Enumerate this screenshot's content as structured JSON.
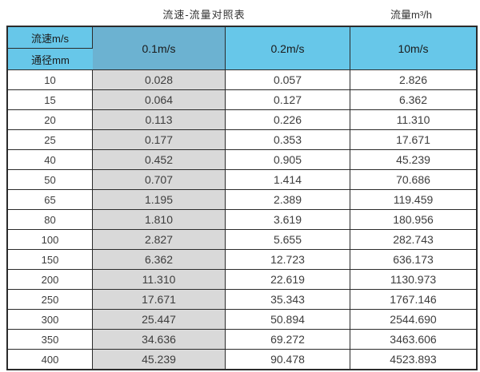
{
  "page": {
    "title": "流速-流量对照表",
    "unit_label": "流量m³/h"
  },
  "table": {
    "corner_top": "流速m/s",
    "corner_bottom": "通径mm",
    "velocity_headers": [
      "0.1m/s",
      "0.2m/s",
      "10m/s"
    ],
    "rows": [
      {
        "dn": "10",
        "v": [
          "0.028",
          "0.057",
          "2.826"
        ]
      },
      {
        "dn": "15",
        "v": [
          "0.064",
          "0.127",
          "6.362"
        ]
      },
      {
        "dn": "20",
        "v": [
          "0.113",
          "0.226",
          "11.310"
        ]
      },
      {
        "dn": "25",
        "v": [
          "0.177",
          "0.353",
          "17.671"
        ]
      },
      {
        "dn": "40",
        "v": [
          "0.452",
          "0.905",
          "45.239"
        ]
      },
      {
        "dn": "50",
        "v": [
          "0.707",
          "1.414",
          "70.686"
        ]
      },
      {
        "dn": "65",
        "v": [
          "1.195",
          "2.389",
          "119.459"
        ]
      },
      {
        "dn": "80",
        "v": [
          "1.810",
          "3.619",
          "180.956"
        ]
      },
      {
        "dn": "100",
        "v": [
          "2.827",
          "5.655",
          "282.743"
        ]
      },
      {
        "dn": "150",
        "v": [
          "6.362",
          "12.723",
          "636.173"
        ]
      },
      {
        "dn": "200",
        "v": [
          "11.310",
          "22.619",
          "1130.973"
        ]
      },
      {
        "dn": "250",
        "v": [
          "17.671",
          "35.343",
          "1767.146"
        ]
      },
      {
        "dn": "300",
        "v": [
          "25.447",
          "50.894",
          "2544.690"
        ]
      },
      {
        "dn": "350",
        "v": [
          "34.636",
          "69.272",
          "3463.606"
        ]
      },
      {
        "dn": "400",
        "v": [
          "45.239",
          "90.478",
          "4523.893"
        ]
      }
    ]
  },
  "colors": {
    "header_blue": "#67c7e9",
    "header_blue_dark": "#6cb2d1",
    "gray_column": "#d9d9d9",
    "border": "#2b2b2b"
  },
  "chart_data": {
    "type": "table",
    "title": "流速-流量对照表",
    "unit": "流量m³/h",
    "row_header_label": "通径mm",
    "column_header_label": "流速m/s",
    "columns": [
      "通径mm",
      "0.1m/s",
      "0.2m/s",
      "10m/s"
    ],
    "diameters_mm": [
      10,
      15,
      20,
      25,
      40,
      50,
      65,
      80,
      100,
      150,
      200,
      250,
      300,
      350,
      400
    ],
    "series": [
      {
        "name": "0.1m/s",
        "values": [
          0.028,
          0.064,
          0.113,
          0.177,
          0.452,
          0.707,
          1.195,
          1.81,
          2.827,
          6.362,
          11.31,
          17.671,
          25.447,
          34.636,
          45.239
        ]
      },
      {
        "name": "0.2m/s",
        "values": [
          0.057,
          0.127,
          0.226,
          0.353,
          0.905,
          1.414,
          2.389,
          3.619,
          5.655,
          12.723,
          22.619,
          35.343,
          50.894,
          69.272,
          90.478
        ]
      },
      {
        "name": "10m/s",
        "values": [
          2.826,
          6.362,
          11.31,
          17.671,
          45.239,
          70.686,
          119.459,
          180.956,
          282.743,
          636.173,
          1130.973,
          1767.146,
          2544.69,
          3463.606,
          4523.893
        ]
      }
    ]
  }
}
